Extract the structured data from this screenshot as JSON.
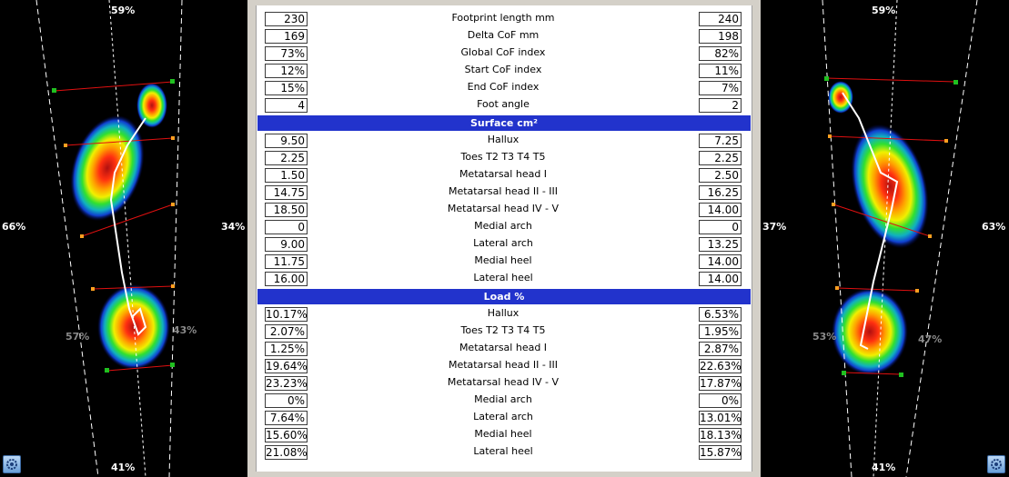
{
  "left_foot": {
    "top_pct": "59%",
    "bottom_pct": "41%",
    "side_left_pct": "66%",
    "side_right_pct": "34%",
    "heel_left_pct": "57%",
    "heel_right_pct": "43%"
  },
  "right_foot": {
    "top_pct": "59%",
    "bottom_pct": "41%",
    "side_left_pct": "37%",
    "side_right_pct": "63%",
    "heel_left_pct": "53%",
    "heel_right_pct": "47%"
  },
  "summary": [
    {
      "label": "Footprint length mm",
      "left": "230",
      "right": "240"
    },
    {
      "label": "Delta CoF mm",
      "left": "169",
      "right": "198"
    },
    {
      "label": "Global CoF index",
      "left": "73%",
      "right": "82%"
    },
    {
      "label": "Start CoF index",
      "left": "12%",
      "right": "11%"
    },
    {
      "label": "End CoF index",
      "left": "15%",
      "right": "7%"
    },
    {
      "label": "Foot angle",
      "left": "4",
      "right": "2"
    }
  ],
  "surface": {
    "title": "Surface cm²",
    "rows": [
      {
        "label": "Hallux",
        "left": "9.50",
        "right": "7.25"
      },
      {
        "label": "Toes T2 T3 T4 T5",
        "left": "2.25",
        "right": "2.25"
      },
      {
        "label": "Metatarsal head I",
        "left": "1.50",
        "right": "2.50"
      },
      {
        "label": "Metatarsal head II - III",
        "left": "14.75",
        "right": "16.25"
      },
      {
        "label": "Metatarsal head IV - V",
        "left": "18.50",
        "right": "14.00"
      },
      {
        "label": "Medial arch",
        "left": "0",
        "right": "0"
      },
      {
        "label": "Lateral arch",
        "left": "9.00",
        "right": "13.25"
      },
      {
        "label": "Medial heel",
        "left": "11.75",
        "right": "14.00"
      },
      {
        "label": "Lateral heel",
        "left": "16.00",
        "right": "14.00"
      }
    ]
  },
  "load": {
    "title": "Load %",
    "rows": [
      {
        "label": "Hallux",
        "left": "10.17%",
        "right": "6.53%"
      },
      {
        "label": "Toes T2 T3 T4 T5",
        "left": "2.07%",
        "right": "1.95%"
      },
      {
        "label": "Metatarsal head I",
        "left": "1.25%",
        "right": "2.87%"
      },
      {
        "label": "Metatarsal head II - III",
        "left": "19.64%",
        "right": "22.63%"
      },
      {
        "label": "Metatarsal head IV - V",
        "left": "23.23%",
        "right": "17.87%"
      },
      {
        "label": "Medial arch",
        "left": "0%",
        "right": "0%"
      },
      {
        "label": "Lateral arch",
        "left": "7.64%",
        "right": "13.01%"
      },
      {
        "label": "Medial heel",
        "left": "15.60%",
        "right": "18.13%"
      },
      {
        "label": "Lateral heel",
        "left": "21.08%",
        "right": "15.87%"
      }
    ]
  },
  "icons": {
    "left_settings": "settings-gear-icon",
    "right_settings": "settings-gear-icon"
  }
}
